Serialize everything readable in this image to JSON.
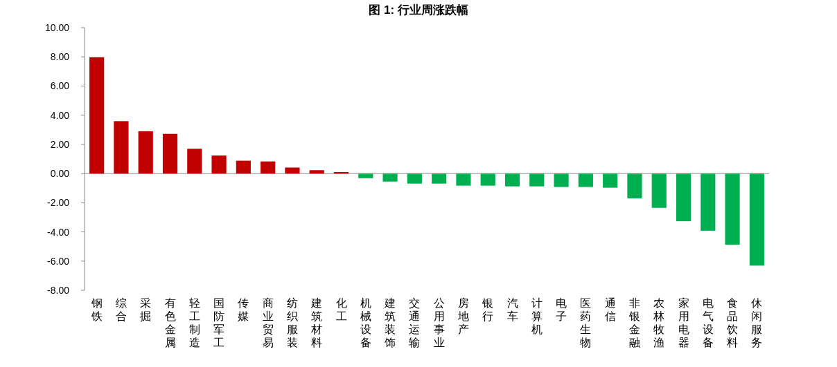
{
  "chart_data": {
    "type": "bar",
    "title": "图 1: 行业周涨跌幅",
    "categories": [
      "钢铁",
      "综合",
      "采掘",
      "有色金属",
      "轻工制造",
      "国防军工",
      "传媒",
      "商业贸易",
      "纺织服装",
      "建筑材料",
      "化工",
      "机械设备",
      "建筑装饰",
      "交通运输",
      "公用事业",
      "房地产",
      "银行",
      "汽车",
      "计算机",
      "电子",
      "医药生物",
      "通信",
      "非银金融",
      "农林牧渔",
      "家用电器",
      "电气设备",
      "食品饮料",
      "休闲服务"
    ],
    "values": [
      7.97,
      3.59,
      2.9,
      2.72,
      1.7,
      1.24,
      0.88,
      0.83,
      0.41,
      0.23,
      0.1,
      -0.32,
      -0.55,
      -0.69,
      -0.69,
      -0.83,
      -0.83,
      -0.88,
      -0.88,
      -0.92,
      -0.92,
      -0.97,
      -1.7,
      -2.35,
      -3.27,
      -3.92,
      -4.88,
      -6.31
    ],
    "colors": [
      "#c00000",
      "#c00000",
      "#c00000",
      "#c00000",
      "#c00000",
      "#c00000",
      "#c00000",
      "#c00000",
      "#c00000",
      "#c00000",
      "#c00000",
      "#00b050",
      "#00b050",
      "#00b050",
      "#00b050",
      "#00b050",
      "#00b050",
      "#00b050",
      "#00b050",
      "#00b050",
      "#00b050",
      "#00b050",
      "#00b050",
      "#00b050",
      "#00b050",
      "#00b050",
      "#00b050",
      "#00b050"
    ],
    "ylim": [
      -8,
      10
    ],
    "yticks": [
      {
        "value": -8,
        "label": "-8.00"
      },
      {
        "value": -6,
        "label": "-6.00"
      },
      {
        "value": -4,
        "label": "-4.00"
      },
      {
        "value": -2,
        "label": "-2.00"
      },
      {
        "value": 0,
        "label": "0.00"
      },
      {
        "value": 2,
        "label": "2.00"
      },
      {
        "value": 4,
        "label": "4.00"
      },
      {
        "value": 6,
        "label": "6.00"
      },
      {
        "value": 8,
        "label": "8.00"
      },
      {
        "value": 10,
        "label": "10.00"
      }
    ],
    "relative": false
  }
}
